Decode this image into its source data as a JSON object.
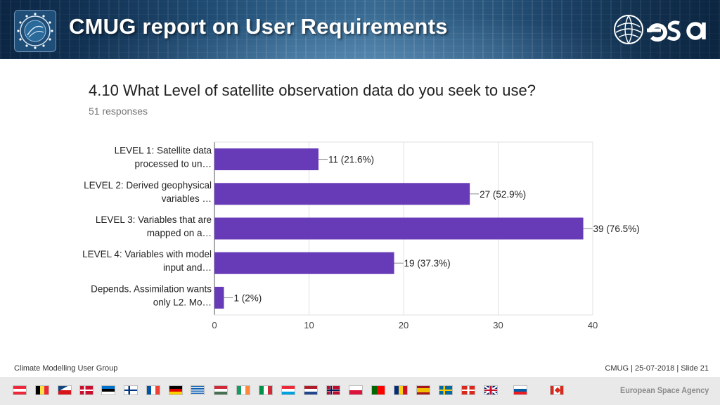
{
  "header": {
    "title": "CMUG report on User Requirements"
  },
  "question": {
    "title": "4.10 What Level of satellite observation data do you seek to use?",
    "responses": "51 responses"
  },
  "chart_data": {
    "type": "bar",
    "orientation": "horizontal",
    "categories": [
      [
        "LEVEL 1: Satellite data",
        "processed to un…"
      ],
      [
        "LEVEL 2: Derived geophysical",
        "variables …"
      ],
      [
        "LEVEL 3: Variables that are",
        "mapped on a…"
      ],
      [
        "LEVEL 4: Variables with model",
        "input and…"
      ],
      [
        "Depends. Assimilation wants",
        "only L2. Mo…"
      ]
    ],
    "values": [
      11,
      27,
      39,
      19,
      1
    ],
    "value_labels": [
      "11 (21.6%)",
      "27 (52.9%)",
      "39 (76.5%)",
      "19 (37.3%)",
      "1 (2%)"
    ],
    "xlim": [
      0,
      40
    ],
    "xticks": [
      0,
      10,
      20,
      30,
      40
    ],
    "grid": true,
    "bar_color": "#673ab7"
  },
  "footer": {
    "left": "Climate Modelling User Group",
    "right": "CMUG | 25-07-2018 | Slide  21",
    "agency": "European Space Agency"
  },
  "flags": [
    "austria",
    "belgium",
    "czech-republic",
    "denmark",
    "estonia",
    "finland",
    "france",
    "germany",
    "greece",
    "hungary",
    "ireland",
    "italy",
    "luxembourg",
    "netherlands",
    "norway",
    "poland",
    "portugal",
    "romania",
    "spain",
    "sweden",
    "switzerland",
    "united-kingdom",
    "slovenia",
    "canada"
  ]
}
